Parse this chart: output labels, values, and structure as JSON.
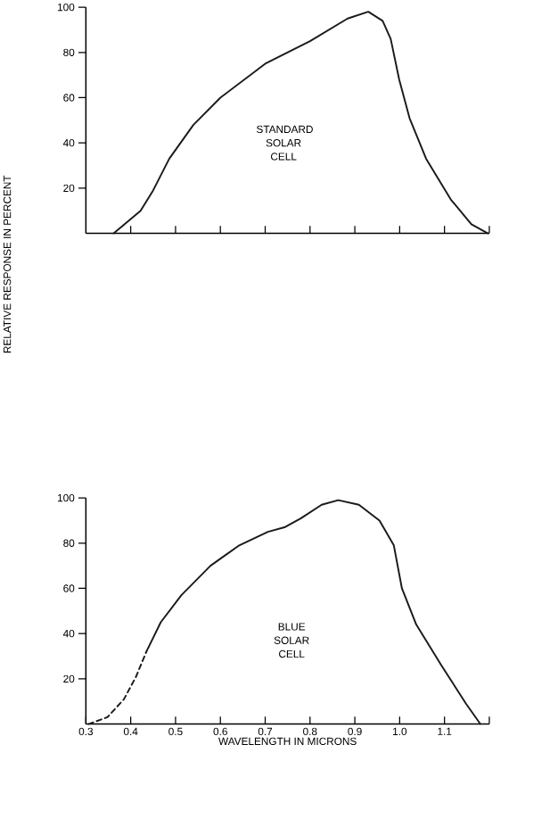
{
  "chart_data": [
    {
      "type": "line",
      "ylabel": "RELATIVE RESPONSE IN PERCENT",
      "annotations": [
        "STANDARD SOLAR CELL"
      ],
      "x": [
        0.362,
        0.422,
        0.45,
        0.486,
        0.54,
        0.6,
        0.7,
        0.8,
        0.884,
        0.93,
        0.962,
        0.98,
        0.999,
        1.022,
        1.059,
        1.114,
        1.16,
        1.197
      ],
      "series": [
        {
          "color": "#1a1a1a",
          "line_style": "solid",
          "values": [
            0,
            10,
            19,
            33,
            48,
            60,
            75,
            85,
            95,
            98,
            94,
            86,
            68,
            51,
            33,
            15,
            4,
            0
          ]
        }
      ],
      "xlim": [
        0.3,
        1.2
      ],
      "xticks": [
        {
          "value": 0.4,
          "label": null
        },
        {
          "value": 0.5,
          "label": null
        },
        {
          "value": 0.6,
          "label": null
        },
        {
          "value": 0.7,
          "label": null
        },
        {
          "value": 0.8,
          "label": null
        },
        {
          "value": 0.9,
          "label": null
        },
        {
          "value": 1.0,
          "label": null
        },
        {
          "value": 1.1,
          "label": null
        },
        {
          "value": 1.2,
          "label": null
        }
      ],
      "ylim": [
        0,
        100
      ],
      "yticks": [
        20,
        40,
        60,
        80,
        100
      ],
      "tick_labels": "y"
    },
    {
      "type": "line",
      "xlabel": "WAVELENGTH IN MICRONS",
      "annotations": [
        "BLUE SOLAR CELL"
      ],
      "series": [
        {
          "color": "#1a1a1a",
          "line_style": "dashed",
          "x": [
            0.306,
            0.348,
            0.385,
            0.412,
            0.435
          ],
          "values": [
            0,
            3,
            11,
            21,
            32
          ]
        },
        {
          "color": "#1a1a1a",
          "line_style": "solid",
          "x": [
            0.435,
            0.467,
            0.513,
            0.578,
            0.642,
            0.706,
            0.743,
            0.78,
            0.826,
            0.863,
            0.909,
            0.955,
            0.987,
            1.005,
            1.037,
            1.093,
            1.148,
            1.18
          ],
          "values": [
            32,
            45,
            57,
            70,
            79,
            85,
            87,
            91,
            97,
            99,
            97,
            90,
            79,
            60,
            44,
            26,
            9,
            0
          ]
        }
      ],
      "xlim": [
        0.3,
        1.2
      ],
      "xticks": [
        0.3,
        0.4,
        0.5,
        0.6,
        0.7,
        0.8,
        0.9,
        {
          "value": 1.0,
          "label": "1.0"
        },
        1.1,
        {
          "value": 1.2,
          "label": null
        }
      ],
      "ylim": [
        0,
        100
      ],
      "yticks": [
        20,
        40,
        60,
        80,
        100
      ]
    }
  ]
}
